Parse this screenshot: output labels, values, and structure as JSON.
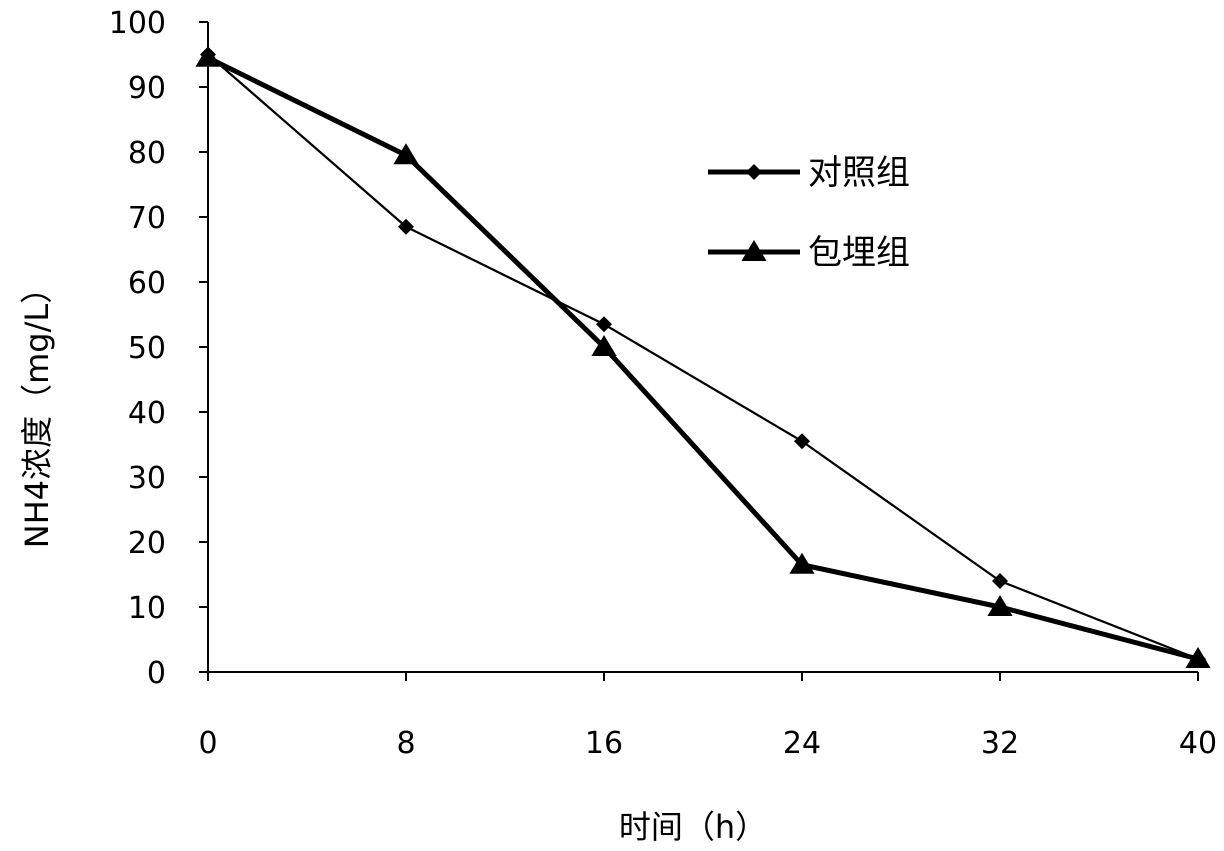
{
  "chart_data": {
    "type": "line",
    "title": "",
    "xlabel": "时间（h）",
    "ylabel": "NH4浓度（mg/L）",
    "x": [
      0,
      8,
      16,
      24,
      32,
      40
    ],
    "xticks": [
      "0",
      "8",
      "16",
      "24",
      "32",
      "40"
    ],
    "yticks": [
      "0",
      "10",
      "20",
      "30",
      "40",
      "50",
      "60",
      "70",
      "80",
      "90",
      "100"
    ],
    "xlim": [
      0,
      40
    ],
    "ylim": [
      0,
      100
    ],
    "grid": false,
    "legend_position": "upper-right",
    "series": [
      {
        "name": "对照组",
        "marker": "diamond",
        "color": "#000000",
        "values": [
          95,
          68.5,
          53.5,
          35.5,
          14,
          2
        ]
      },
      {
        "name": "包埋组",
        "marker": "triangle",
        "color": "#000000",
        "values": [
          94.5,
          79.5,
          50,
          16.5,
          10,
          2
        ]
      }
    ]
  }
}
